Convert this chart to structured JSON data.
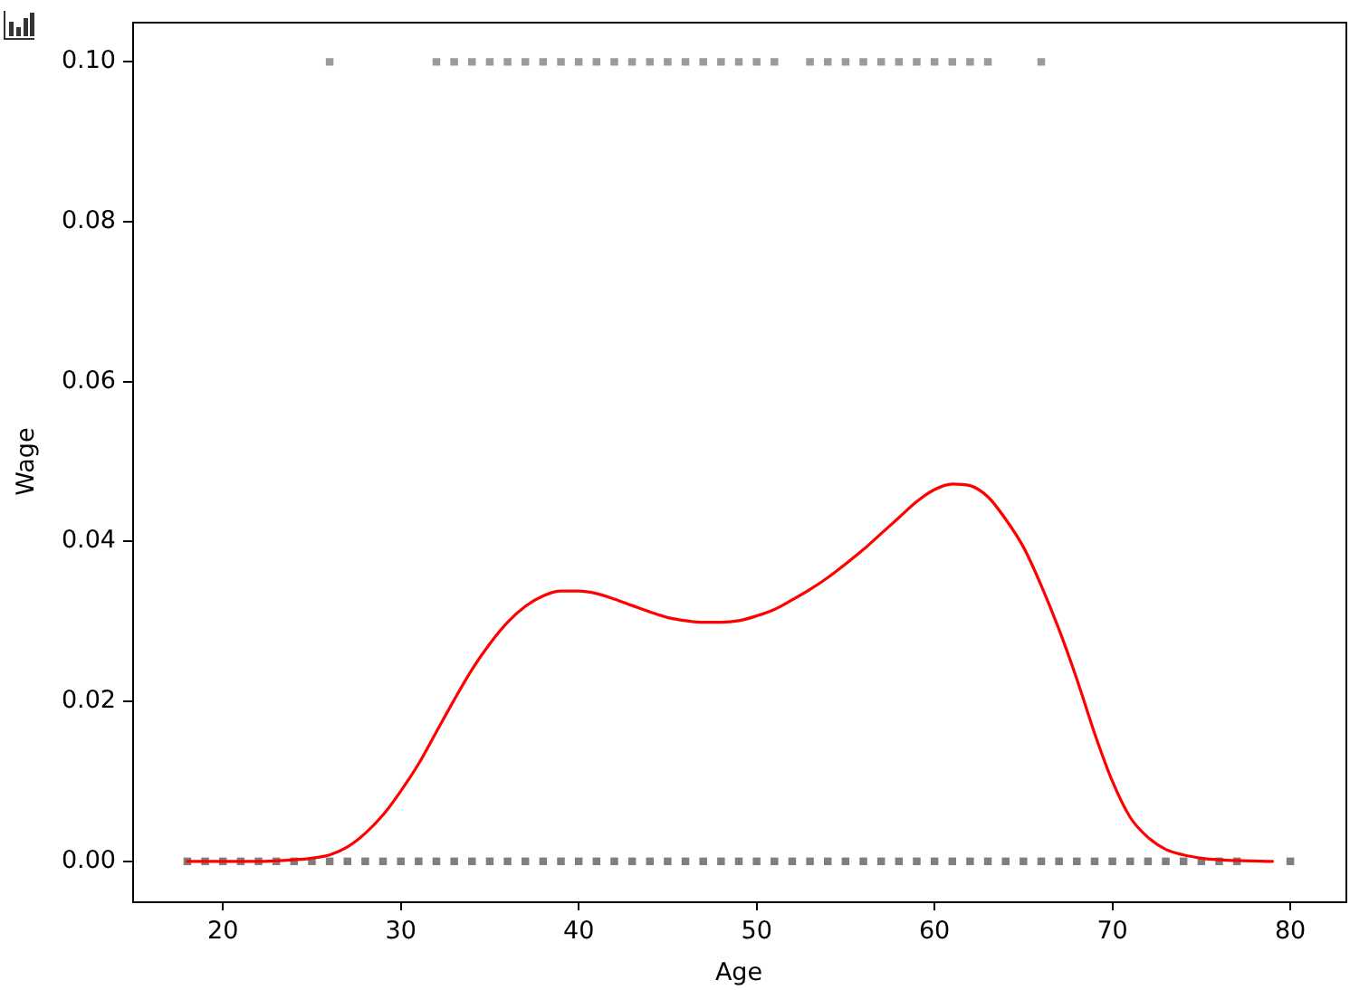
{
  "chart_data": {
    "type": "line",
    "xlabel": "Age",
    "ylabel": "Wage",
    "xlim": [
      14.9,
      83.1
    ],
    "ylim": [
      -0.005,
      0.105
    ],
    "xticks": [
      20,
      30,
      40,
      50,
      60,
      70,
      80
    ],
    "yticks": [
      {
        "value": 0,
        "label": "0.00"
      },
      {
        "value": 0.02,
        "label": "0.02"
      },
      {
        "value": 0.04,
        "label": "0.04"
      },
      {
        "value": 0.06,
        "label": "0.06"
      },
      {
        "value": 0.08,
        "label": "0.08"
      },
      {
        "value": 0.1,
        "label": "0.10"
      }
    ],
    "series": [
      {
        "type": "scatter",
        "color": "#7f7f7f",
        "marker": "square",
        "x": [
          18,
          19,
          20,
          21,
          22,
          23,
          24,
          25,
          26,
          27,
          28,
          29,
          30,
          31,
          32,
          33,
          34,
          35,
          36,
          37,
          38,
          39,
          40,
          41,
          42,
          43,
          44,
          45,
          46,
          47,
          48,
          49,
          50,
          51,
          52,
          53,
          54,
          55,
          56,
          57,
          58,
          59,
          60,
          61,
          62,
          63,
          64,
          65,
          66,
          67,
          68,
          69,
          70,
          71,
          72,
          73,
          74,
          75,
          76,
          77,
          80
        ],
        "values": [
          0,
          0,
          0,
          0,
          0,
          0,
          0,
          0,
          0,
          0,
          0,
          0,
          0,
          0,
          0,
          0,
          0,
          0,
          0,
          0,
          0,
          0,
          0,
          0,
          0,
          0,
          0,
          0,
          0,
          0,
          0,
          0,
          0,
          0,
          0,
          0,
          0,
          0,
          0,
          0,
          0,
          0,
          0,
          0,
          0,
          0,
          0,
          0,
          0,
          0,
          0,
          0,
          0,
          0,
          0,
          0,
          0,
          0,
          0,
          0,
          0
        ]
      },
      {
        "type": "scatter",
        "color": "#9a9a9a",
        "marker": "square",
        "x": [
          26,
          32,
          33,
          34,
          35,
          36,
          37,
          38,
          39,
          40,
          41,
          42,
          43,
          44,
          45,
          46,
          47,
          48,
          49,
          50,
          51,
          53,
          54,
          55,
          56,
          57,
          58,
          59,
          60,
          61,
          62,
          63,
          66
        ],
        "values": [
          0.1,
          0.1,
          0.1,
          0.1,
          0.1,
          0.1,
          0.1,
          0.1,
          0.1,
          0.1,
          0.1,
          0.1,
          0.1,
          0.1,
          0.1,
          0.1,
          0.1,
          0.1,
          0.1,
          0.1,
          0.1,
          0.1,
          0.1,
          0.1,
          0.1,
          0.1,
          0.1,
          0.1,
          0.1,
          0.1,
          0.1,
          0.1,
          0.1
        ]
      },
      {
        "color": "#ff0000",
        "marker": "none",
        "x": [
          18,
          20,
          22,
          24,
          25,
          26,
          27,
          28,
          29,
          30,
          31,
          32,
          33,
          34,
          35,
          36,
          37,
          38,
          39,
          40,
          41,
          42,
          43,
          44,
          45,
          46,
          47,
          48,
          49,
          50,
          51,
          52,
          53,
          54,
          55,
          56,
          57,
          58,
          59,
          60,
          61,
          62,
          63,
          64,
          65,
          66,
          67,
          68,
          69,
          70,
          71,
          72,
          73,
          74,
          75,
          76,
          77,
          79
        ],
        "values": [
          0,
          0,
          0,
          0.0002,
          0.0004,
          0.0008,
          0.0018,
          0.0035,
          0.0058,
          0.0088,
          0.0122,
          0.0162,
          0.0202,
          0.024,
          0.0272,
          0.0299,
          0.0319,
          0.0332,
          0.0338,
          0.0338,
          0.0335,
          0.0328,
          0.032,
          0.0312,
          0.0305,
          0.0301,
          0.0299,
          0.0299,
          0.0301,
          0.0307,
          0.0315,
          0.0327,
          0.034,
          0.0355,
          0.0372,
          0.039,
          0.041,
          0.043,
          0.045,
          0.0465,
          0.0472,
          0.047,
          0.0456,
          0.0428,
          0.0393,
          0.0345,
          0.029,
          0.0228,
          0.016,
          0.01,
          0.0055,
          0.003,
          0.0015,
          0.0008,
          0.0004,
          0.0002,
          0.0001,
          0
        ]
      }
    ]
  }
}
